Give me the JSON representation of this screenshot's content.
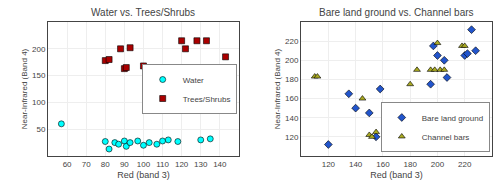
{
  "chart_data": [
    {
      "type": "scatter",
      "title": "Water vs. Trees/Shrubs",
      "xlabel": "Red (band 3)",
      "ylabel": "Near-Infrared (Band 4)",
      "xlim": [
        50,
        150
      ],
      "ylim": [
        0,
        250
      ],
      "xticks": [
        60,
        70,
        80,
        90,
        100,
        110,
        120,
        130,
        140
      ],
      "yticks": [
        50,
        100,
        150,
        200
      ],
      "grid": true,
      "legend": "right",
      "series": [
        {
          "name": "Water",
          "color": "#00FFFF",
          "marker": "circle",
          "x": [
            57,
            80,
            82,
            85,
            87,
            90,
            91,
            93,
            97,
            100,
            103,
            107,
            110,
            113,
            118,
            130,
            135
          ],
          "values": [
            60,
            27,
            13,
            25,
            22,
            28,
            18,
            25,
            28,
            20,
            25,
            22,
            28,
            30,
            27,
            30,
            32
          ]
        },
        {
          "name": "Trees/Shrubs",
          "color": "#AA0000",
          "marker": "square",
          "x": [
            80,
            82,
            88,
            90,
            91,
            93,
            100,
            103,
            120,
            122,
            128,
            133,
            143
          ],
          "values": [
            178,
            180,
            200,
            163,
            165,
            202,
            168,
            165,
            215,
            200,
            215,
            215,
            185
          ]
        }
      ]
    },
    {
      "type": "scatter",
      "title": "Bare land ground vs. Channel bars",
      "xlabel": "Red (band 3)",
      "ylabel": "Near-Infrared (Band 4)",
      "xlim": [
        100,
        240
      ],
      "ylim": [
        100,
        240
      ],
      "xticks": [
        120,
        140,
        160,
        180,
        200,
        220
      ],
      "yticks": [
        120,
        140,
        160,
        180,
        200,
        220
      ],
      "grid": true,
      "legend": "lower right",
      "series": [
        {
          "name": "Bare land ground",
          "color": "#2255CC",
          "marker": "diamond",
          "x": [
            120,
            135,
            140,
            150,
            155,
            158,
            195,
            197,
            200,
            205,
            207,
            220,
            222,
            225,
            228
          ],
          "values": [
            112,
            165,
            150,
            145,
            120,
            170,
            175,
            215,
            205,
            200,
            182,
            205,
            207,
            232,
            210
          ]
        },
        {
          "name": "Channel bars",
          "color": "#AAAA22",
          "marker": "triangle-up",
          "x": [
            110,
            112,
            145,
            150,
            152,
            155,
            180,
            185,
            195,
            198,
            200,
            202,
            205,
            218,
            220
          ],
          "values": [
            183,
            183,
            160,
            122,
            120,
            125,
            175,
            190,
            190,
            190,
            218,
            190,
            190,
            215,
            215
          ]
        }
      ]
    }
  ]
}
